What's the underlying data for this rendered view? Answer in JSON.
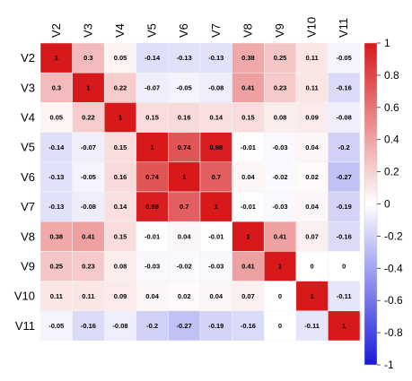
{
  "chart_data": {
    "type": "heatmap",
    "labels": [
      "V2",
      "V3",
      "V4",
      "V5",
      "V6",
      "V7",
      "V8",
      "V9",
      "V10",
      "V11"
    ],
    "matrix": [
      [
        1,
        0.3,
        0.05,
        -0.14,
        -0.13,
        -0.13,
        0.38,
        0.25,
        0.11,
        -0.05
      ],
      [
        0.3,
        1,
        0.22,
        -0.07,
        -0.05,
        -0.08,
        0.41,
        0.23,
        0.11,
        -0.16
      ],
      [
        0.05,
        0.22,
        1,
        0.15,
        0.16,
        0.14,
        0.15,
        0.08,
        0.09,
        -0.08
      ],
      [
        -0.14,
        -0.07,
        0.15,
        1,
        0.74,
        0.98,
        -0.01,
        -0.03,
        0.04,
        -0.2
      ],
      [
        -0.13,
        -0.05,
        0.16,
        0.74,
        1,
        0.7,
        0.04,
        -0.02,
        0.02,
        -0.27
      ],
      [
        -0.13,
        -0.08,
        0.14,
        0.98,
        0.7,
        1,
        -0.01,
        -0.03,
        0.04,
        -0.19
      ],
      [
        0.38,
        0.41,
        0.15,
        -0.01,
        0.04,
        -0.01,
        1,
        0.41,
        0.07,
        -0.16
      ],
      [
        0.25,
        0.23,
        0.08,
        -0.03,
        -0.02,
        -0.03,
        0.41,
        1,
        0,
        0
      ],
      [
        0.11,
        0.11,
        0.09,
        0.04,
        0.02,
        0.04,
        0.07,
        0,
        1,
        -0.11
      ],
      [
        -0.05,
        -0.16,
        -0.08,
        -0.2,
        -0.27,
        -0.19,
        -0.16,
        0,
        -0.11,
        1
      ]
    ],
    "colorbar": {
      "ticks": [
        1,
        0.8,
        0.6,
        0.4,
        0.2,
        0,
        -0.2,
        -0.4,
        -0.6,
        -0.8,
        -1
      ],
      "range": [
        -1,
        1
      ],
      "colors": {
        "low": "#1a1adb",
        "mid": "#ffffff",
        "high": "#d7191c"
      }
    },
    "grid": true,
    "legend_placement": "right"
  }
}
